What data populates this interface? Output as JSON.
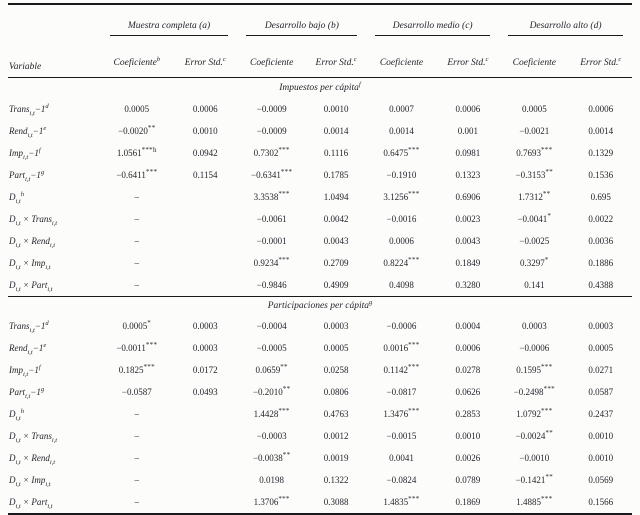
{
  "table": {
    "variable_header": "Variable",
    "colors": {
      "text": "#24242c",
      "rule": "#19191c",
      "background": "#fcfcfa"
    },
    "groups": [
      {
        "label": "Muestra completa (a)",
        "coef": [
          [
            "t",
            "Coeficiente"
          ],
          [
            "sup",
            "b"
          ]
        ],
        "err": [
          [
            "t",
            "Error Std."
          ],
          [
            "sup",
            "c"
          ]
        ]
      },
      {
        "label": "Desarrollo bajo (b)",
        "coef": [
          [
            "t",
            "Coeficiente"
          ]
        ],
        "err": [
          [
            "t",
            "Error Std."
          ],
          [
            "sup",
            "c"
          ]
        ]
      },
      {
        "label": "Desarrollo medio (c)",
        "coef": [
          [
            "t",
            "Coeficiente"
          ]
        ],
        "err": [
          [
            "t",
            "Error Std."
          ],
          [
            "sup",
            "c"
          ]
        ]
      },
      {
        "label": "Desarrollo alto (d)",
        "coef": [
          [
            "t",
            "Coeficiente"
          ]
        ],
        "err": [
          [
            "t",
            "Error Std."
          ],
          [
            "sup",
            "c"
          ]
        ]
      }
    ],
    "sections": [
      {
        "title": [
          [
            "t",
            "Impuestos per cápita"
          ],
          [
            "sup",
            "f"
          ]
        ],
        "rows": [
          {
            "label": [
              [
                "t",
                "Trans"
              ],
              [
                "sub",
                "i,t"
              ],
              [
                "t",
                "−1"
              ],
              [
                "sup",
                "d"
              ]
            ],
            "values": [
              "0.0005",
              "0.0006",
              "−0.0009",
              "0.0010",
              "0.0007",
              "0.0006",
              "0.0005",
              "0.0006"
            ]
          },
          {
            "label": [
              [
                "t",
                "Rend"
              ],
              [
                "sub",
                "i,t"
              ],
              [
                "t",
                "−1"
              ],
              [
                "sup",
                "e"
              ]
            ],
            "values": [
              "−0.0020**",
              "0.0010",
              "−0.0009",
              "0.0014",
              "0.0014",
              "0.001",
              "−0.0021",
              "0.0014"
            ]
          },
          {
            "label": [
              [
                "t",
                "Imp"
              ],
              [
                "sub",
                "i,t"
              ],
              [
                "t",
                "−1"
              ],
              [
                "sup",
                "f"
              ]
            ],
            "values": [
              "1.0561***h",
              "0.0942",
              "0.7302***",
              "0.1116",
              "0.6475***",
              "0.0981",
              "0.7693***",
              "0.1329"
            ]
          },
          {
            "label": [
              [
                "t",
                "Part"
              ],
              [
                "sub",
                "i,t"
              ],
              [
                "t",
                "−1"
              ],
              [
                "sup",
                "g"
              ]
            ],
            "values": [
              "−0.6411***",
              "0.1154",
              "−0.6341***",
              "0.1785",
              "−0.1910",
              "0.1323",
              "−0.3153**",
              "0.1536"
            ]
          },
          {
            "label": [
              [
                "t",
                "D"
              ],
              [
                "sub",
                "i,t"
              ],
              [
                "sup",
                "h"
              ]
            ],
            "values": [
              "–",
              "",
              "3.3538***",
              "1.0494",
              "3.1256***",
              "0.6906",
              "1.7312**",
              "0.695"
            ]
          },
          {
            "label": [
              [
                "t",
                "D"
              ],
              [
                "sub",
                "i,t"
              ],
              [
                "t",
                " × Trans"
              ],
              [
                "sub",
                "i,t"
              ]
            ],
            "values": [
              "–",
              "",
              "−0.0061",
              "0.0042",
              "−0.0016",
              "0.0023",
              "−0.0041*",
              "0.0022"
            ]
          },
          {
            "label": [
              [
                "t",
                "D"
              ],
              [
                "sub",
                "i,t"
              ],
              [
                "t",
                " × Rend"
              ],
              [
                "sub",
                "i,t"
              ]
            ],
            "values": [
              "–",
              "",
              "−0.0001",
              "0.0043",
              "0.0006",
              "0.0043",
              "−0.0025",
              "0.0036"
            ]
          },
          {
            "label": [
              [
                "t",
                "D"
              ],
              [
                "sub",
                "i,t"
              ],
              [
                "t",
                " × Imp"
              ],
              [
                "sub",
                "i,t"
              ]
            ],
            "values": [
              "–",
              "",
              "0.9234***",
              "0.2709",
              "0.8224***",
              "0.1849",
              "0.3297*",
              "0.1886"
            ]
          },
          {
            "label": [
              [
                "t",
                "D"
              ],
              [
                "sub",
                "i,t"
              ],
              [
                "t",
                " × Part"
              ],
              [
                "sub",
                "i,t"
              ]
            ],
            "values": [
              "–",
              "",
              "−0.9846",
              "0.4909",
              "0.4098",
              "0.3280",
              "0.141",
              "0.4388"
            ]
          }
        ]
      },
      {
        "title": [
          [
            "t",
            "Participaciones per cápita"
          ],
          [
            "sup",
            "g"
          ]
        ],
        "rows": [
          {
            "label": [
              [
                "t",
                "Trans"
              ],
              [
                "sub",
                "i,t"
              ],
              [
                "t",
                "−1"
              ],
              [
                "sup",
                "d"
              ]
            ],
            "values": [
              "0.0005*",
              "0.0003",
              "−0.0004",
              "0.0003",
              "−0.0006",
              "0.0004",
              "0.0003",
              "0.0003"
            ]
          },
          {
            "label": [
              [
                "t",
                "Rend"
              ],
              [
                "sub",
                "i,t"
              ],
              [
                "t",
                "−1"
              ],
              [
                "sup",
                "e"
              ]
            ],
            "values": [
              "−0.0011***",
              "0.0003",
              "−0.0005",
              "0.0005",
              "0.0016***",
              "0.0006",
              "−0.0006",
              "0.0005"
            ]
          },
          {
            "label": [
              [
                "t",
                "Imp"
              ],
              [
                "sub",
                "i,t"
              ],
              [
                "t",
                "−1"
              ],
              [
                "sup",
                "f"
              ]
            ],
            "values": [
              "0.1825***",
              "0.0172",
              "0.0659**",
              "0.0258",
              "0.1142***",
              "0.0278",
              "0.1595***",
              "0.0271"
            ]
          },
          {
            "label": [
              [
                "t",
                "Part"
              ],
              [
                "sub",
                "i,t"
              ],
              [
                "t",
                "−1"
              ],
              [
                "sup",
                "g"
              ]
            ],
            "values": [
              "−0.0587",
              "0.0493",
              "−0.2010**",
              "0.0806",
              "−0.0817",
              "0.0626",
              "−0.2498***",
              "0.0587"
            ]
          },
          {
            "label": [
              [
                "t",
                "D"
              ],
              [
                "sub",
                "i,t"
              ],
              [
                "sup",
                "h"
              ]
            ],
            "values": [
              "–",
              "",
              "1.4428***",
              "0.4763",
              "1.3476***",
              "0.2853",
              "1.0792***",
              "0.2437"
            ]
          },
          {
            "label": [
              [
                "t",
                "D"
              ],
              [
                "sub",
                "i,t"
              ],
              [
                "t",
                " × Trans"
              ],
              [
                "sub",
                "i,t"
              ]
            ],
            "values": [
              "–",
              "",
              "−0.0003",
              "0.0012",
              "−0.0015",
              "0.0010",
              "−0.0024**",
              "0.0010"
            ]
          },
          {
            "label": [
              [
                "t",
                "D"
              ],
              [
                "sub",
                "i,t"
              ],
              [
                "t",
                " × Rend"
              ],
              [
                "sub",
                "i,t"
              ]
            ],
            "values": [
              "–",
              "",
              "−0.0038**",
              "0.0019",
              "0.0041",
              "0.0026",
              "−0.0010",
              "0.0010"
            ]
          },
          {
            "label": [
              [
                "t",
                "D"
              ],
              [
                "sub",
                "i,t"
              ],
              [
                "t",
                " × Imp"
              ],
              [
                "sub",
                "i,t"
              ]
            ],
            "values": [
              "–",
              "",
              "0.0198",
              "0.1322",
              "−0.0824",
              "0.0789",
              "−0.1421**",
              "0.0569"
            ]
          },
          {
            "label": [
              [
                "t",
                "D"
              ],
              [
                "sub",
                "i,t"
              ],
              [
                "t",
                " × Part"
              ],
              [
                "sub",
                "i,t"
              ]
            ],
            "values": [
              "–",
              "",
              "1.3706***",
              "0.3088",
              "1.4835***",
              "0.1869",
              "1.4885***",
              "0.1566"
            ]
          }
        ]
      }
    ]
  }
}
